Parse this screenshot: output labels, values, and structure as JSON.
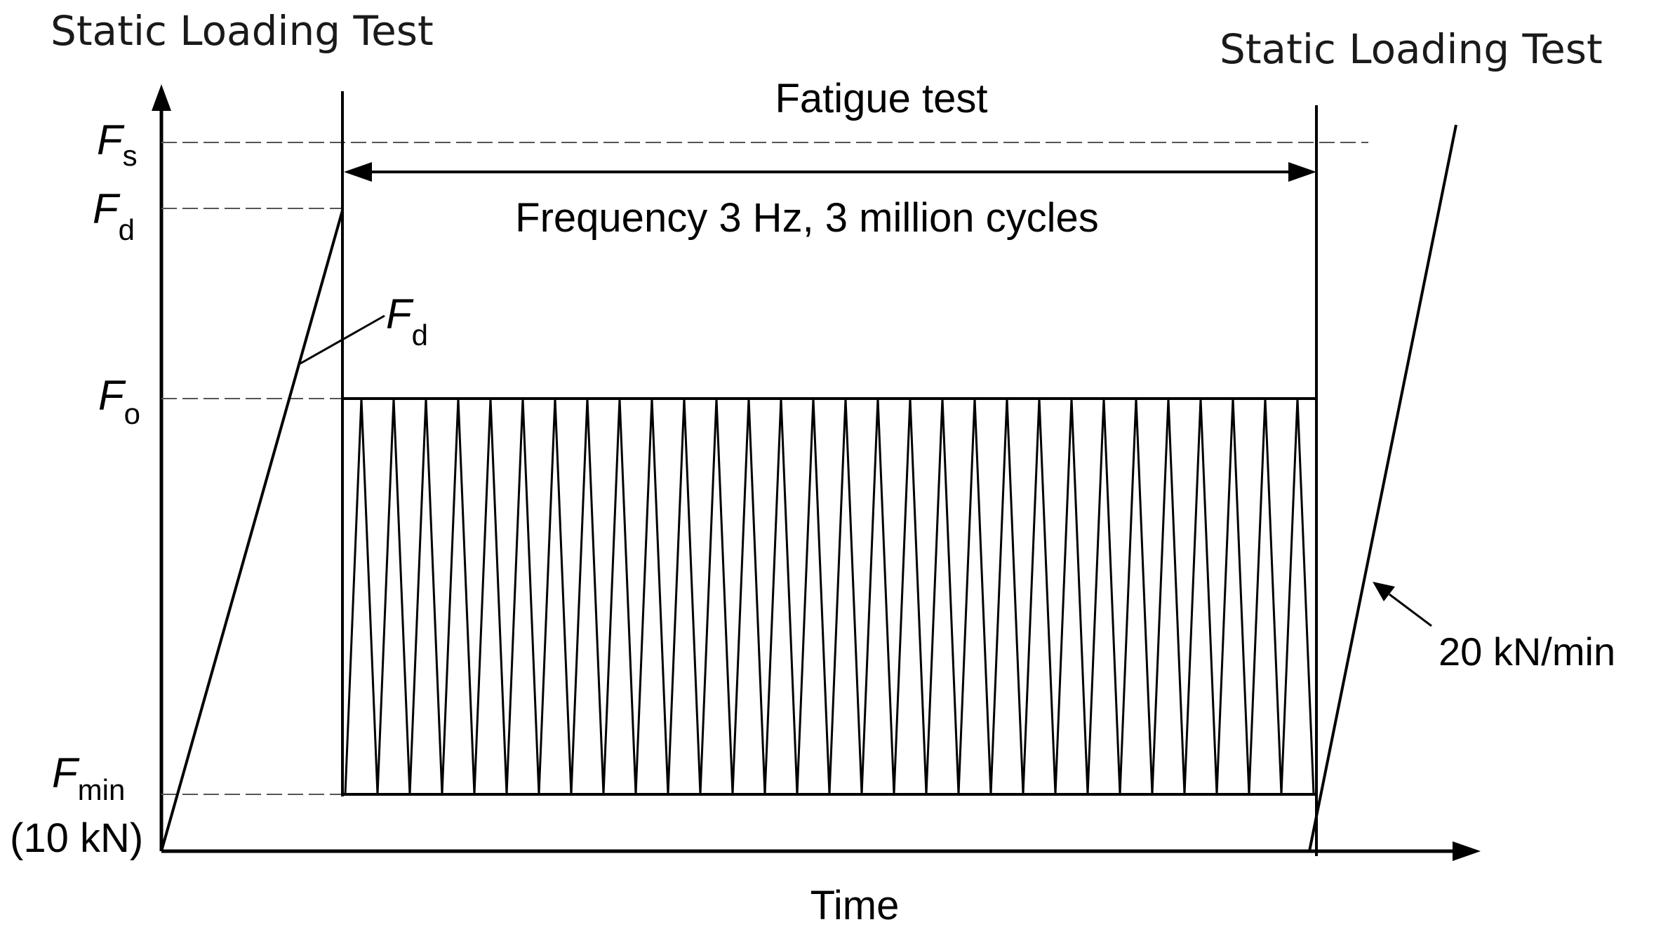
{
  "labels": {
    "left_test": "Static Loading Test",
    "right_test": "Static Loading Test",
    "fatigue": "Fatigue test",
    "frequency": "Frequency 3 Hz, 3 million cycles",
    "rate": "20 kN/min",
    "x_axis": "Time"
  },
  "y_levels": {
    "fs": {
      "symbol": "F",
      "sub": "s"
    },
    "fd": {
      "symbol": "F",
      "sub": "d"
    },
    "fo": {
      "symbol": "F",
      "sub": "o"
    },
    "fmin": {
      "symbol": "F",
      "sub": "min",
      "note": "(10 kN)"
    }
  },
  "slope_label": {
    "symbol": "F",
    "sub": "d"
  },
  "cycles": {
    "count": 30
  },
  "colors": {
    "ink": "#000000",
    "dash": "#555555",
    "text": "#1a1a1a"
  }
}
